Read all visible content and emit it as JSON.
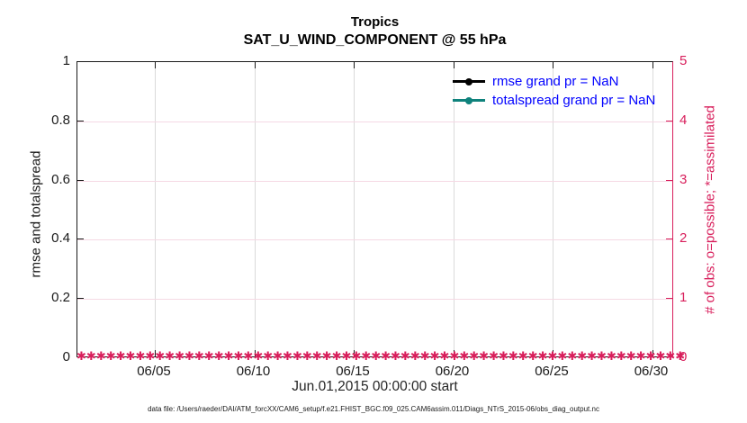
{
  "figure": {
    "title_line1": "Tropics",
    "title_line2": "SAT_U_WIND_COMPONENT @ 55 hPa",
    "xlabel": "Jun.01,2015 00:00:00 start",
    "ylabel_left": "rmse and totalspread",
    "ylabel_right": "# of obs: o=possible; *=assimilated",
    "caption": "data file: /Users/raeder/DAI/ATM_forcXX/CAM6_setup/f.e21.FHIST_BGC.f09_025.CAM6assim.011/Diags_NTrS_2015-06/obs_diag_output.nc"
  },
  "legend": [
    {
      "label": "rmse grand pr = NaN",
      "color": "#000000"
    },
    {
      "label": "totalspread grand pr = NaN",
      "color": "#0f827c"
    }
  ],
  "colors": {
    "right_axis_pink": "#d81e5b",
    "teal_series": "#0f827c",
    "legend_text_blue": "#0000ff",
    "x_grid_gray": "#dadada",
    "y_grid_pink": "#f5d9e4",
    "axis_black": "#1a1a1a"
  },
  "chart_data": {
    "type": "line",
    "title": "Tropics",
    "subtitle": "SAT_U_WIND_COMPONENT @ 55 hPa",
    "grid": true,
    "legend_position": "top-right-inside",
    "x_axis": {
      "label": "Jun.01,2015 00:00:00 start",
      "tick_labels": [
        "06/05",
        "06/10",
        "06/15",
        "06/20",
        "06/25",
        "06/30"
      ],
      "range_dates": [
        "2015-06-01",
        "2015-06-30"
      ]
    },
    "y_axis_left": {
      "label": "rmse and totalspread",
      "lim": [
        0,
        1
      ],
      "tick_labels": [
        "0",
        "0.2",
        "0.4",
        "0.6",
        "0.8",
        "1"
      ]
    },
    "y_axis_right": {
      "label": "# of obs: o=possible; *=assimilated",
      "lim": [
        0,
        5
      ],
      "tick_labels": [
        "0",
        "1",
        "2",
        "3",
        "4",
        "5"
      ]
    },
    "series": [
      {
        "name": "rmse",
        "color": "#000000",
        "grand_pr": "NaN",
        "values": null
      },
      {
        "name": "totalspread",
        "color": "#0f827c",
        "grand_pr": "NaN",
        "values": null
      },
      {
        "name": "obs possible",
        "axis": "right",
        "marker": "o",
        "color": "#d81e5b",
        "constant_value": 0,
        "n_points": 62
      },
      {
        "name": "obs assimilated",
        "axis": "right",
        "marker": "*",
        "color": "#d81e5b",
        "constant_value": 0,
        "n_points": 62
      }
    ]
  }
}
